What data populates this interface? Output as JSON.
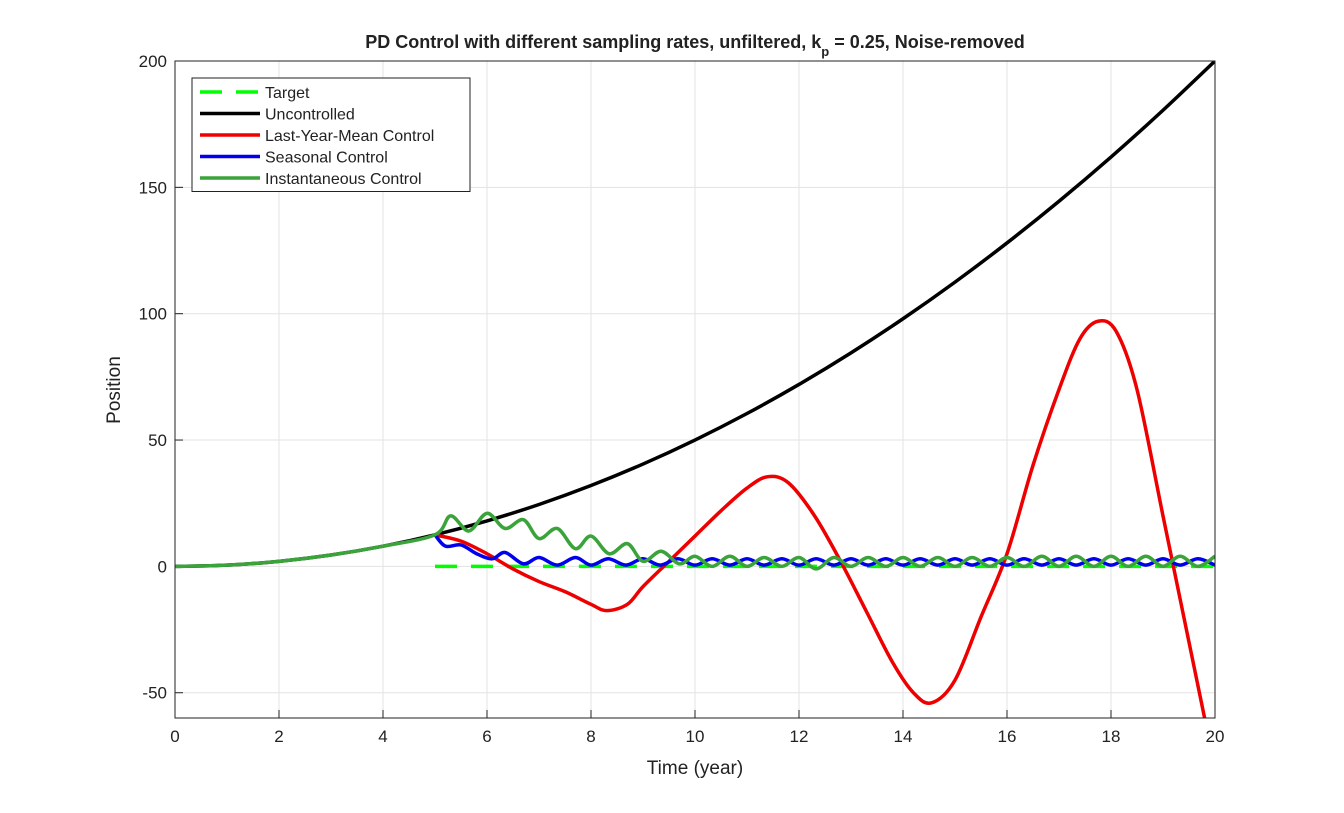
{
  "chart_data": {
    "type": "line",
    "title": [
      "PD Control with different sampling rates, unfiltered, k",
      "p",
      " = 0.25, Noise-removed"
    ],
    "x_label": "Time (year)",
    "y_label": "Position",
    "xlim": [
      0,
      20
    ],
    "ylim": [
      -60,
      200
    ],
    "xticks": [
      0,
      2,
      4,
      6,
      8,
      10,
      12,
      14,
      16,
      18,
      20
    ],
    "yticks": [
      -50,
      0,
      50,
      100,
      150,
      200
    ],
    "grid": true,
    "legend": "upper-left",
    "series": [
      {
        "name": "Target",
        "color": "#00ff00",
        "dashed": true,
        "x": [
          5,
          20
        ],
        "values": [
          0,
          0
        ]
      },
      {
        "name": "Uncontrolled",
        "color": "#000000",
        "x": [
          0,
          1,
          2,
          3,
          4,
          5,
          6,
          7,
          8,
          9,
          10,
          11,
          12,
          13,
          14,
          15,
          16,
          17,
          18,
          19,
          20
        ],
        "values": [
          0,
          0.5,
          2,
          4.5,
          8,
          12.5,
          18,
          24.5,
          32,
          40.5,
          50,
          60.5,
          72,
          84.5,
          98,
          112.5,
          128,
          144.5,
          162,
          180.5,
          200
        ]
      },
      {
        "name": "Last-Year-Mean Control",
        "color": "#ee0000",
        "x": [
          5,
          5.5,
          6,
          6.5,
          7,
          7.5,
          8,
          8.3,
          8.7,
          9,
          9.5,
          10,
          10.5,
          11,
          11.4,
          11.8,
          12.3,
          12.8,
          13.3,
          13.8,
          14.2,
          14.55,
          15,
          15.5,
          16,
          16.5,
          17,
          17.4,
          17.75,
          18.1,
          18.5,
          19,
          19.5,
          19.8,
          20
        ],
        "values": [
          12.5,
          10,
          5,
          -1,
          -6,
          -10,
          -15,
          -17.5,
          -15,
          -8,
          2,
          12,
          22,
          31,
          35.5,
          33,
          20,
          2,
          -18,
          -38,
          -50,
          -54,
          -45,
          -20,
          5,
          40,
          70,
          90,
          97,
          93,
          70,
          20,
          -30,
          -60,
          -80
        ]
      },
      {
        "name": "Seasonal Control",
        "color": "#0000ee",
        "x": [
          5,
          5.2,
          5.5,
          5.8,
          6.1,
          6.35,
          6.7,
          7,
          7.35,
          7.7,
          8,
          8.33,
          8.67,
          9,
          9.33,
          9.67,
          10,
          10.33,
          10.67,
          11,
          11.33,
          11.67,
          12,
          12.33,
          12.67,
          13,
          13.33,
          13.67,
          14,
          14.33,
          14.67,
          15,
          15.33,
          15.67,
          16,
          16.33,
          16.67,
          17,
          17.33,
          17.67,
          18,
          18.33,
          18.67,
          19,
          19.33,
          19.67,
          20
        ],
        "values": [
          12.5,
          8,
          8.5,
          5,
          3,
          5.5,
          1,
          3.5,
          0.5,
          3.5,
          0.5,
          3,
          0.5,
          3,
          0.5,
          3,
          0.5,
          3,
          0.5,
          3,
          0.5,
          3,
          0.5,
          3,
          0.5,
          3,
          0.5,
          3,
          0.5,
          3,
          0.5,
          3,
          0.5,
          3,
          0.5,
          3,
          0.5,
          3,
          0.5,
          3,
          0.5,
          3,
          0.5,
          3,
          0.5,
          3,
          0.5
        ]
      },
      {
        "name": "Instantaneous Control",
        "color": "#3aa33a",
        "x": [
          0,
          1,
          2,
          3,
          4,
          5,
          5.3,
          5.65,
          6,
          6.35,
          6.7,
          7,
          7.35,
          7.7,
          8,
          8.35,
          8.7,
          9,
          9.35,
          9.7,
          10,
          10.33,
          10.67,
          11,
          11.33,
          11.67,
          12,
          12.33,
          12.67,
          13,
          13.33,
          13.67,
          14,
          14.33,
          14.67,
          15,
          15.33,
          15.67,
          16,
          16.33,
          16.67,
          17,
          17.33,
          17.67,
          18,
          18.33,
          18.67,
          19,
          19.33,
          19.67,
          20
        ],
        "values": [
          0,
          0.5,
          2,
          4.5,
          8,
          12.5,
          20,
          14,
          21,
          15,
          18.5,
          11,
          15,
          7,
          12,
          5,
          9,
          2,
          6,
          1,
          4,
          0,
          4,
          0,
          3.5,
          0,
          3.5,
          -1,
          3.5,
          0,
          3.5,
          0,
          3.5,
          0,
          3.5,
          0,
          3.5,
          0,
          3.5,
          0,
          4,
          0,
          4,
          0,
          4,
          0,
          4,
          0,
          4,
          0,
          4
        ]
      }
    ]
  }
}
